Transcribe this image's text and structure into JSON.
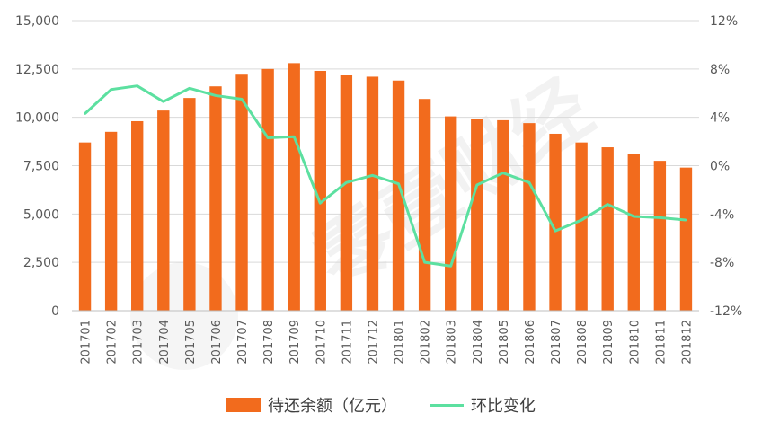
{
  "chart_data": {
    "type": "bar+line",
    "categories": [
      "201701",
      "201702",
      "201703",
      "201704",
      "201705",
      "201706",
      "201707",
      "201708",
      "201709",
      "201710",
      "201711",
      "201712",
      "201801",
      "201802",
      "201803",
      "201804",
      "201805",
      "201806",
      "201807",
      "201808",
      "201809",
      "201810",
      "201811",
      "201812"
    ],
    "series": [
      {
        "name": "待还余额（亿元）",
        "type": "bar",
        "axis": "left",
        "color": "#F26B1D",
        "values": [
          8700,
          9250,
          9800,
          10350,
          11000,
          11600,
          12250,
          12500,
          12800,
          12400,
          12200,
          12100,
          11900,
          10950,
          10050,
          9900,
          9850,
          9700,
          9150,
          8700,
          8450,
          8100,
          7750,
          7400
        ]
      },
      {
        "name": "环比变化",
        "type": "line",
        "axis": "right",
        "color": "#5CE0A0",
        "values": [
          4.3,
          6.3,
          6.6,
          5.3,
          6.4,
          5.8,
          5.5,
          2.3,
          2.4,
          -3.1,
          -1.4,
          -0.8,
          -1.5,
          -8.0,
          -8.3,
          -1.6,
          -0.6,
          -1.4,
          -5.4,
          -4.5,
          -3.2,
          -4.2,
          -4.3,
          -4.5
        ]
      }
    ],
    "y_left": {
      "min": 0,
      "max": 15000,
      "ticks": [
        "0",
        "2,500",
        "5,000",
        "7,500",
        "10,000",
        "12,500",
        "15,000"
      ]
    },
    "y_right": {
      "min": -12,
      "max": 12,
      "ticks": [
        "-12%",
        "-8%",
        "-4%",
        "0%",
        "4%",
        "8%",
        "12%"
      ]
    },
    "grid": "horizontal",
    "legend_position": "bottom",
    "watermark": "零壹财经"
  }
}
